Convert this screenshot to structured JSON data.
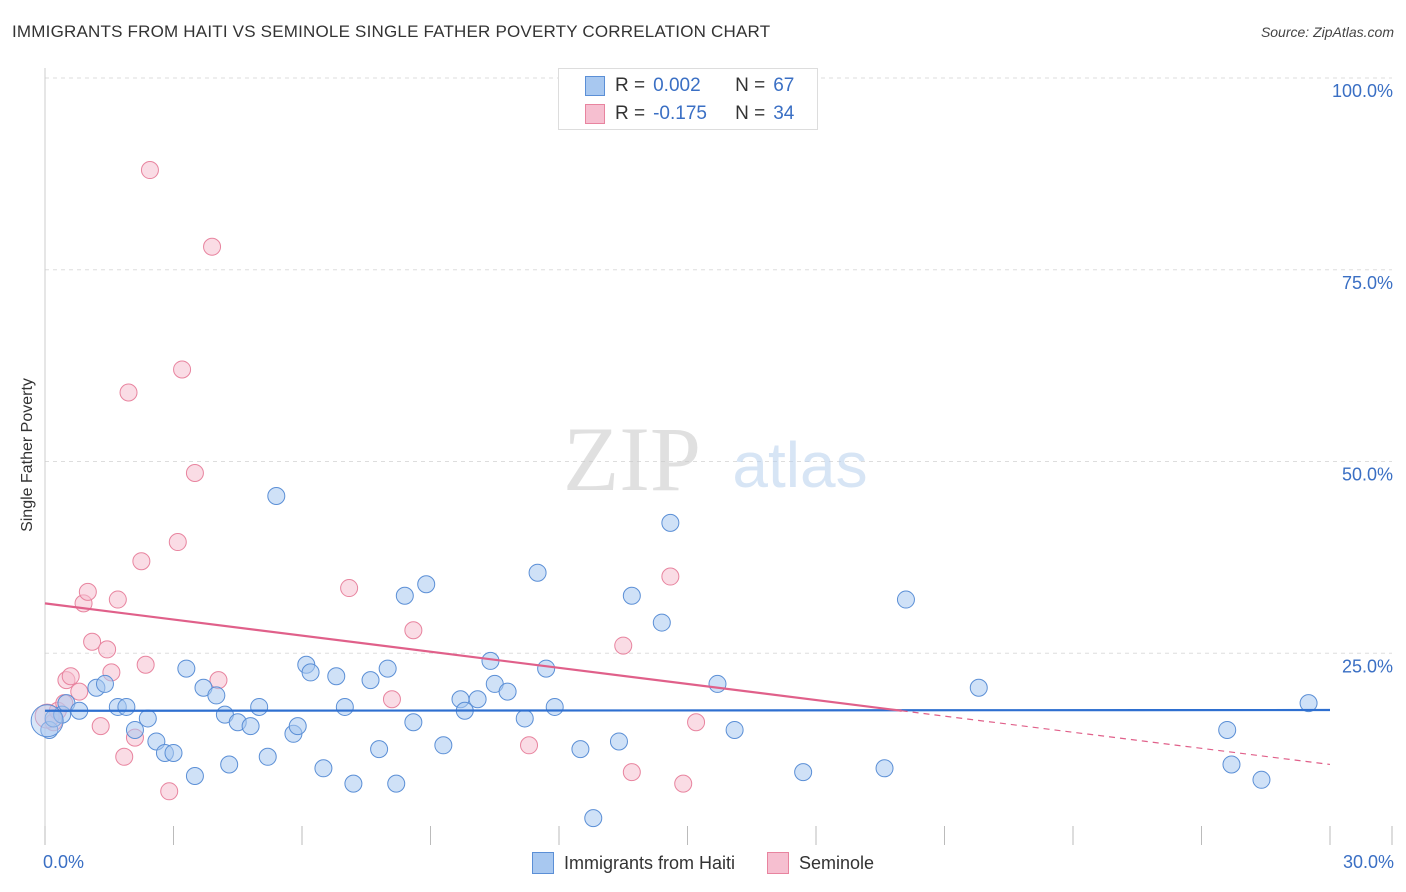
{
  "header": {
    "title": "IMMIGRANTS FROM HAITI VS SEMINOLE SINGLE FATHER POVERTY CORRELATION CHART",
    "source": "Source: ZipAtlas.com"
  },
  "stats": {
    "rows": [
      {
        "r_label": "R =",
        "r_value": "0.002",
        "n_label": "N =",
        "n_value": "67"
      },
      {
        "r_label": "R =",
        "r_value": "-0.175",
        "n_label": "N =",
        "n_value": "34"
      }
    ]
  },
  "colors": {
    "blue_fill": "#a8c8f0",
    "blue_stroke": "#5b8fd6",
    "blue_line": "#2e6fd0",
    "pink_fill": "#f6bfd0",
    "pink_stroke": "#e8849f",
    "pink_line": "#e0608a",
    "axis_text": "#3a6fc4",
    "grid": "#dddddd"
  },
  "watermark": {
    "zip": "ZIP",
    "atlas": "atlas"
  },
  "chart_data": {
    "type": "scatter",
    "title": "IMMIGRANTS FROM HAITI VS SEMINOLE SINGLE FATHER POVERTY CORRELATION CHART",
    "xlabel": "",
    "ylabel": "Single Father Poverty",
    "xlim": [
      0,
      30
    ],
    "ylim": [
      0,
      100
    ],
    "x_tick_labels": [
      "0.0%",
      "30.0%"
    ],
    "y_ticks": [
      25,
      50,
      75,
      100
    ],
    "y_tick_labels": [
      "25.0%",
      "50.0%",
      "75.0%",
      "100.0%"
    ],
    "legend_position": "bottom-center",
    "series": [
      {
        "name": "Immigrants from Haiti",
        "color": "#a8c8f0",
        "R": 0.002,
        "N": 67,
        "trend": {
          "x": [
            0,
            30
          ],
          "y": [
            17.5,
            17.6
          ]
        },
        "points": [
          [
            0.1,
            15.0
          ],
          [
            0.2,
            16.5
          ],
          [
            0.4,
            17.0
          ],
          [
            0.5,
            18.5
          ],
          [
            0.8,
            17.5
          ],
          [
            1.2,
            20.5
          ],
          [
            1.4,
            21.0
          ],
          [
            1.7,
            18.0
          ],
          [
            1.9,
            18.0
          ],
          [
            2.1,
            15.0
          ],
          [
            2.4,
            16.5
          ],
          [
            2.6,
            13.5
          ],
          [
            2.8,
            12.0
          ],
          [
            3.0,
            12.0
          ],
          [
            3.3,
            23.0
          ],
          [
            3.5,
            9.0
          ],
          [
            3.7,
            20.5
          ],
          [
            4.0,
            19.5
          ],
          [
            4.2,
            17.0
          ],
          [
            4.3,
            10.5
          ],
          [
            4.5,
            16.0
          ],
          [
            4.8,
            15.5
          ],
          [
            5.0,
            18.0
          ],
          [
            5.2,
            11.5
          ],
          [
            5.4,
            45.5
          ],
          [
            5.8,
            14.5
          ],
          [
            5.9,
            15.5
          ],
          [
            6.1,
            23.5
          ],
          [
            6.2,
            22.5
          ],
          [
            6.5,
            10.0
          ],
          [
            6.8,
            22.0
          ],
          [
            7.0,
            18.0
          ],
          [
            7.2,
            8.0
          ],
          [
            7.6,
            21.5
          ],
          [
            7.8,
            12.5
          ],
          [
            8.0,
            23.0
          ],
          [
            8.2,
            8.0
          ],
          [
            8.4,
            32.5
          ],
          [
            8.6,
            16.0
          ],
          [
            8.9,
            34.0
          ],
          [
            9.3,
            13.0
          ],
          [
            9.7,
            19.0
          ],
          [
            9.8,
            17.5
          ],
          [
            10.1,
            19.0
          ],
          [
            10.4,
            24.0
          ],
          [
            10.5,
            21.0
          ],
          [
            10.8,
            20.0
          ],
          [
            11.2,
            16.5
          ],
          [
            11.5,
            35.5
          ],
          [
            11.7,
            23.0
          ],
          [
            11.9,
            18.0
          ],
          [
            12.5,
            12.5
          ],
          [
            12.8,
            3.5
          ],
          [
            13.4,
            13.5
          ],
          [
            13.7,
            32.5
          ],
          [
            14.4,
            29.0
          ],
          [
            14.6,
            42.0
          ],
          [
            15.7,
            21.0
          ],
          [
            16.1,
            15.0
          ],
          [
            17.7,
            9.5
          ],
          [
            19.6,
            10.0
          ],
          [
            20.1,
            32.0
          ],
          [
            21.8,
            20.5
          ],
          [
            27.6,
            15.0
          ],
          [
            27.7,
            10.5
          ],
          [
            28.4,
            8.5
          ],
          [
            29.5,
            18.5
          ]
        ]
      },
      {
        "name": "Seminole",
        "color": "#f6bfd0",
        "R": -0.175,
        "N": 34,
        "trend": {
          "x": [
            0,
            20
          ],
          "y": [
            31.5,
            17.5
          ]
        },
        "trend_dashed": {
          "x": [
            20,
            30
          ],
          "y": [
            17.5,
            10.5
          ]
        },
        "points": [
          [
            0.2,
            16.0
          ],
          [
            0.3,
            17.5
          ],
          [
            0.45,
            18.5
          ],
          [
            0.5,
            21.5
          ],
          [
            0.6,
            22.0
          ],
          [
            0.8,
            20.0
          ],
          [
            0.9,
            31.5
          ],
          [
            1.0,
            33.0
          ],
          [
            1.1,
            26.5
          ],
          [
            1.3,
            15.5
          ],
          [
            1.45,
            25.5
          ],
          [
            1.55,
            22.5
          ],
          [
            1.7,
            32.0
          ],
          [
            1.85,
            11.5
          ],
          [
            1.95,
            59.0
          ],
          [
            2.1,
            14.0
          ],
          [
            2.25,
            37.0
          ],
          [
            2.35,
            23.5
          ],
          [
            2.45,
            88.0
          ],
          [
            2.9,
            7.0
          ],
          [
            3.1,
            39.5
          ],
          [
            3.2,
            62.0
          ],
          [
            3.5,
            48.5
          ],
          [
            3.9,
            78.0
          ],
          [
            4.05,
            21.5
          ],
          [
            7.1,
            33.5
          ],
          [
            8.1,
            19.0
          ],
          [
            8.6,
            28.0
          ],
          [
            11.3,
            13.0
          ],
          [
            13.5,
            26.0
          ],
          [
            13.7,
            9.5
          ],
          [
            14.6,
            35.0
          ],
          [
            14.9,
            8.0
          ],
          [
            15.2,
            16.0
          ]
        ]
      }
    ]
  },
  "legend": {
    "items": [
      {
        "label": "Immigrants from Haiti"
      },
      {
        "label": "Seminole"
      }
    ]
  }
}
